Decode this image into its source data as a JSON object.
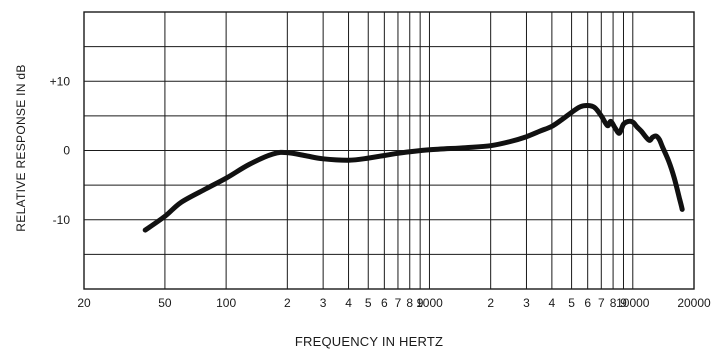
{
  "chart_data": {
    "type": "line",
    "xlabel": "FREQUENCY IN HERTZ",
    "ylabel": "RELATIVE RESPONSE IN dB",
    "x_scale": "log",
    "xlim": [
      20,
      20000
    ],
    "ylim": [
      -20,
      20
    ],
    "grid": true,
    "x_ticks": [
      {
        "value": 20,
        "label": "20"
      },
      {
        "value": 50,
        "label": "50"
      },
      {
        "value": 100,
        "label": "100"
      },
      {
        "value": 200,
        "label": "2"
      },
      {
        "value": 300,
        "label": "3"
      },
      {
        "value": 400,
        "label": "4"
      },
      {
        "value": 500,
        "label": "5"
      },
      {
        "value": 600,
        "label": "6"
      },
      {
        "value": 700,
        "label": "7"
      },
      {
        "value": 800,
        "label": "8"
      },
      {
        "value": 900,
        "label": "9"
      },
      {
        "value": 1000,
        "label": "1000"
      },
      {
        "value": 2000,
        "label": "2"
      },
      {
        "value": 3000,
        "label": "3"
      },
      {
        "value": 4000,
        "label": "4"
      },
      {
        "value": 5000,
        "label": "5"
      },
      {
        "value": 6000,
        "label": "6"
      },
      {
        "value": 7000,
        "label": "7"
      },
      {
        "value": 8000,
        "label": "8"
      },
      {
        "value": 9000,
        "label": "9"
      },
      {
        "value": 10000,
        "label": "10000"
      },
      {
        "value": 20000,
        "label": "20000"
      }
    ],
    "y_ticks": [
      {
        "value": 10,
        "label": "+10"
      },
      {
        "value": 0,
        "label": "0"
      },
      {
        "value": -10,
        "label": "-10"
      }
    ],
    "y_gridlines": [
      -20,
      -15,
      -10,
      -5,
      0,
      5,
      10,
      15,
      20
    ],
    "series": [
      {
        "x": [
          40,
          50,
          60,
          80,
          100,
          130,
          170,
          200,
          250,
          300,
          400,
          500,
          700,
          1000,
          1500,
          2000,
          2500,
          3000,
          3500,
          4000,
          4500,
          5000,
          5500,
          6000,
          6500,
          7000,
          7500,
          7800,
          8200,
          8600,
          9000,
          9500,
          10000,
          10500,
          11000,
          12000,
          12500,
          13000,
          13500,
          14000,
          15000,
          16000,
          17000,
          17500
        ],
        "y": [
          -11.5,
          -9.5,
          -7.5,
          -5.5,
          -4,
          -2,
          -0.5,
          -0.3,
          -0.8,
          -1.2,
          -1.4,
          -1.1,
          -0.4,
          0.1,
          0.4,
          0.7,
          1.3,
          2,
          2.8,
          3.5,
          4.5,
          5.5,
          6.3,
          6.5,
          6.2,
          5,
          3.6,
          4.2,
          3.2,
          2.5,
          3.8,
          4.2,
          4.1,
          3.4,
          2.8,
          1.5,
          1.9,
          2.1,
          1.6,
          0.5,
          -1.5,
          -4,
          -7,
          -8.5
        ]
      }
    ]
  }
}
